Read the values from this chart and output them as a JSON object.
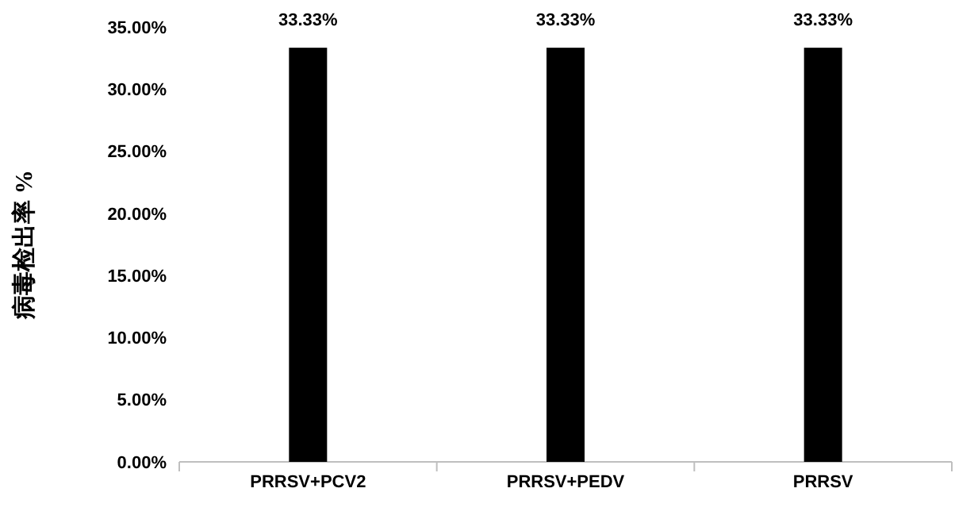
{
  "chart_data": {
    "type": "bar",
    "ylabel": "病毒检出率 %",
    "categories": [
      "PRRSV+PCV2",
      "PRRSV+PEDV",
      "PRRSV"
    ],
    "values": [
      33.33,
      33.33,
      33.33
    ],
    "color": "#000000",
    "value_labels": [
      "33.33%",
      "33.33%",
      "33.33%"
    ],
    "ylim": [
      0,
      35
    ],
    "yticks": [
      {
        "value": 0,
        "label": "0.00%"
      },
      {
        "value": 5,
        "label": "5.00%"
      },
      {
        "value": 10,
        "label": "10.00%"
      },
      {
        "value": 15,
        "label": "15.00%"
      },
      {
        "value": 20,
        "label": "20.00%"
      },
      {
        "value": 25,
        "label": "25.00%"
      },
      {
        "value": 30,
        "label": "30.00%"
      },
      {
        "value": 35,
        "label": "35.00%"
      }
    ],
    "grid": false
  }
}
